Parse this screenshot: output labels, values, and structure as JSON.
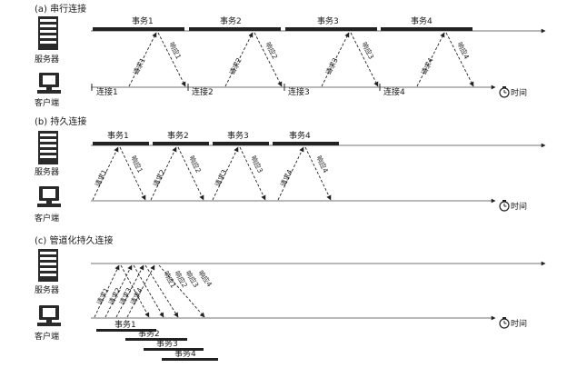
{
  "labels": {
    "server": "服务器",
    "client": "客户端",
    "time": "时间"
  },
  "sections": [
    {
      "title": "(a) 串行连接",
      "transactions": [
        "事务1",
        "事务2",
        "事务3",
        "事务4"
      ],
      "connections": [
        "连接1",
        "连接2",
        "连接3",
        "连接4"
      ],
      "requests": [
        "请求1",
        "请求2",
        "请求3",
        "请求4"
      ],
      "responses": [
        "响应1",
        "响应2",
        "响应3",
        "响应4"
      ]
    },
    {
      "title": "(b) 持久连接",
      "transactions": [
        "事务1",
        "事务2",
        "事务3",
        "事务4"
      ],
      "requests": [
        "请求1",
        "请求2",
        "请求3",
        "请求4"
      ],
      "responses": [
        "响应1",
        "响应2",
        "响应3",
        "响应4"
      ]
    },
    {
      "title": "(c) 管道化持久连接",
      "transactions": [
        "事务1",
        "事务2",
        "事务3",
        "事务4"
      ],
      "requests": [
        "请求1",
        "请求2",
        "请求3",
        "请求4"
      ],
      "responses": [
        "响应1",
        "响应2",
        "响应3",
        "响应4"
      ]
    }
  ]
}
